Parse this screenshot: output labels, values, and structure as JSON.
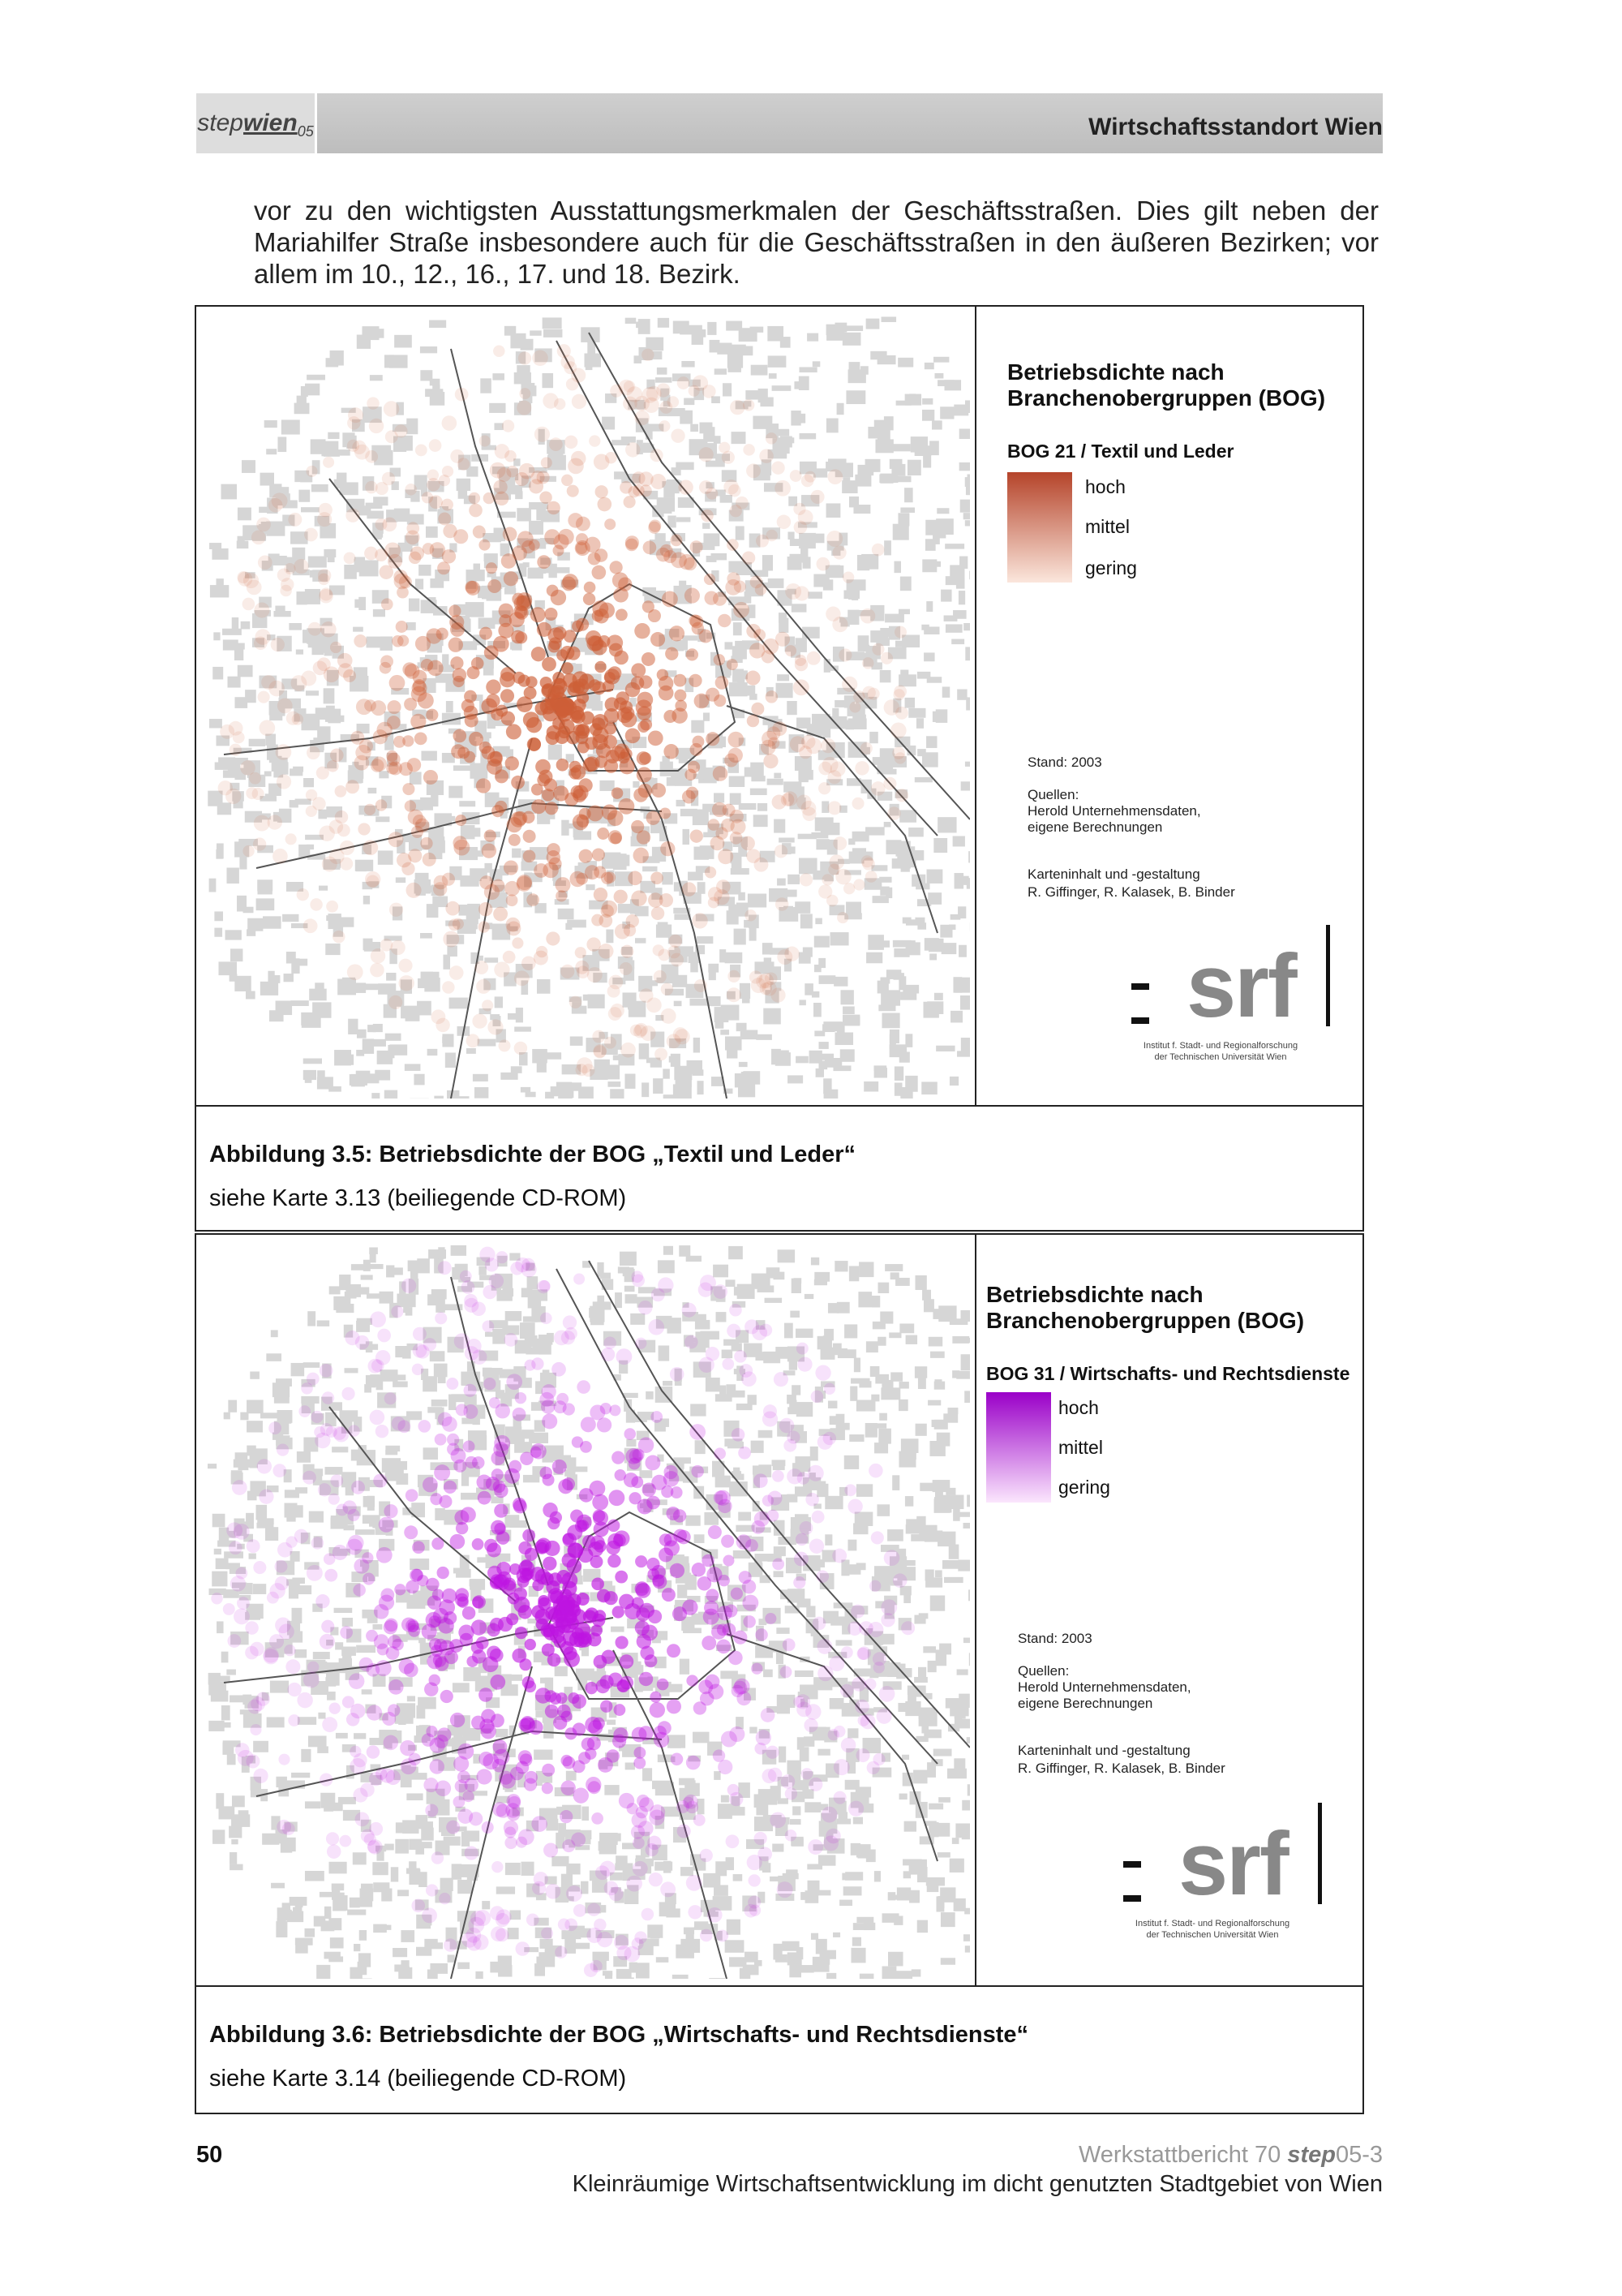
{
  "header": {
    "logo": {
      "step": "step",
      "wien": "wien",
      "year": "05"
    },
    "title": "Wirtschaftsstandort Wien"
  },
  "body": "vor zu den wichtigsten Ausstattungsmerkmalen der Geschäftsstraßen. Dies gilt neben der Mariahilfer Straße insbesondere auch für die Geschäftsstraßen in den äußeren Bezirken; vor allem im 10., 12., 16., 17. und 18. Bezirk.",
  "figures": [
    {
      "legend": {
        "title": [
          "Betriebsdichte nach",
          "Branchenobergruppen (BOG)"
        ],
        "subtitle": "BOG 21 / Textil und Leder",
        "levels": [
          "hoch",
          "mittel",
          "gering"
        ]
      },
      "credits": {
        "stand": "Stand: 2003",
        "sources": [
          "Quellen:",
          "Herold Unternehmensdaten,",
          "eigene Berechnungen"
        ],
        "authors": [
          "Karteninhalt und -gestaltung",
          "R. Giffinger, R. Kalasek, B. Binder"
        ],
        "logo": "srf",
        "institute": [
          "Institut f. Stadt- und Regionalforschung",
          "der Technischen Universität Wien"
        ]
      },
      "caption": {
        "title": "Abbildung 3.5: Betriebsdichte der BOG „Textil und Leder“",
        "note": "siehe Karte 3.13 (beiliegende CD-ROM)"
      }
    },
    {
      "legend": {
        "title": [
          "Betriebsdichte nach",
          "Branchenobergruppen (BOG)"
        ],
        "subtitle": "BOG 31 / Wirtschafts- und Rechtsdienste",
        "levels": [
          "hoch",
          "mittel",
          "gering"
        ]
      },
      "credits": {
        "stand": "Stand: 2003",
        "sources": [
          "Quellen:",
          "Herold Unternehmensdaten,",
          "eigene Berechnungen"
        ],
        "authors": [
          "Karteninhalt und -gestaltung",
          "R. Giffinger, R. Kalasek, B. Binder"
        ],
        "logo": "srf",
        "institute": [
          "Institut f. Stadt- und Regionalforschung",
          "der Technischen Universität Wien"
        ]
      },
      "caption": {
        "title": "Abbildung 3.6: Betriebsdichte der BOG „Wirtschafts- und Rechtsdienste“",
        "note": "siehe Karte 3.14 (beiliegende CD-ROM)"
      }
    }
  ],
  "footer": {
    "page": "50",
    "series": "Werkstattbericht 70",
    "brand": "step",
    "brand_suffix": "05-3",
    "subtitle": "Kleinräumige Wirtschaftsentwicklung im dicht genutzten Stadtgebiet von Wien"
  }
}
